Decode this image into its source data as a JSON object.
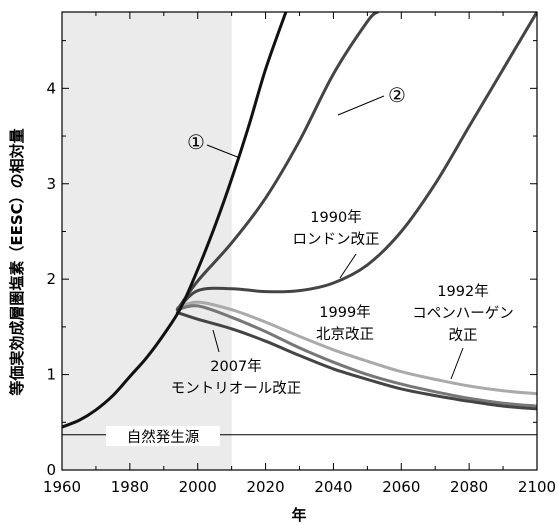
{
  "chart_data": {
    "type": "line",
    "xlabel": "年",
    "ylabel": "等価実効成層圏塩素（EESC）の相対量",
    "xlim": [
      1960,
      2100
    ],
    "ylim": [
      0,
      4.8
    ],
    "xticks": [
      "1960",
      "1980",
      "2000",
      "2020",
      "2040",
      "2060",
      "2080",
      "2100"
    ],
    "yticks": [
      "0",
      "1",
      "2",
      "3",
      "4"
    ],
    "shaded_period": [
      1960,
      2010
    ],
    "natural_source": {
      "label": "自然発生源",
      "value": 0.37
    },
    "series": [
      {
        "name": "①",
        "color": "#111111",
        "x": [
          1960,
          1965,
          1970,
          1975,
          1980,
          1985,
          1990,
          1995,
          2000,
          2005,
          2010,
          2015,
          2020,
          2026
        ],
        "y": [
          0.45,
          0.52,
          0.63,
          0.78,
          0.98,
          1.18,
          1.42,
          1.7,
          2.1,
          2.55,
          3.05,
          3.6,
          4.2,
          4.8
        ]
      },
      {
        "name": "②",
        "color": "#444444",
        "x": [
          1994,
          2000,
          2010,
          2020,
          2030,
          2040,
          2050,
          2053
        ],
        "y": [
          1.68,
          1.98,
          2.38,
          2.85,
          3.45,
          4.15,
          4.7,
          4.8
        ]
      },
      {
        "name": "1990年 ロンドン改正",
        "color": "#444444",
        "x": [
          1994,
          2000,
          2010,
          2020,
          2030,
          2040,
          2050,
          2060,
          2070,
          2080,
          2090,
          2100
        ],
        "y": [
          1.68,
          1.88,
          1.9,
          1.87,
          1.88,
          1.96,
          2.15,
          2.5,
          3.0,
          3.6,
          4.2,
          4.8
        ]
      },
      {
        "name": "1992年 コペンハーゲン改正",
        "color": "#aaaaaa",
        "x": [
          1994,
          2000,
          2010,
          2020,
          2030,
          2040,
          2050,
          2060,
          2070,
          2080,
          2090,
          2100
        ],
        "y": [
          1.7,
          1.76,
          1.68,
          1.55,
          1.4,
          1.26,
          1.14,
          1.03,
          0.95,
          0.88,
          0.83,
          0.8
        ]
      },
      {
        "name": "1999年 北京改正",
        "color": "#777777",
        "x": [
          1994,
          2000,
          2010,
          2020,
          2030,
          2040,
          2050,
          2060,
          2070,
          2080,
          2090,
          2100
        ],
        "y": [
          1.68,
          1.72,
          1.6,
          1.45,
          1.28,
          1.13,
          1.0,
          0.9,
          0.82,
          0.75,
          0.7,
          0.67
        ]
      },
      {
        "name": "2007年 モントリオール改正",
        "color": "#444444",
        "x": [
          1994,
          2000,
          2010,
          2020,
          2030,
          2040,
          2050,
          2060,
          2070,
          2080,
          2090,
          2100
        ],
        "y": [
          1.65,
          1.58,
          1.48,
          1.35,
          1.2,
          1.06,
          0.95,
          0.85,
          0.78,
          0.72,
          0.67,
          0.64
        ]
      }
    ],
    "labels": {
      "s1": "①",
      "s2": "②",
      "london_year": "1990年",
      "london_name": "ロンドン改正",
      "copen_year": "1992年",
      "copen_name1": "コペンハーゲン",
      "copen_name2": "改正",
      "beijing_year": "1999年",
      "beijing_name": "北京改正",
      "montreal_year": "2007年",
      "montreal_name": "モントリオール改正"
    }
  }
}
